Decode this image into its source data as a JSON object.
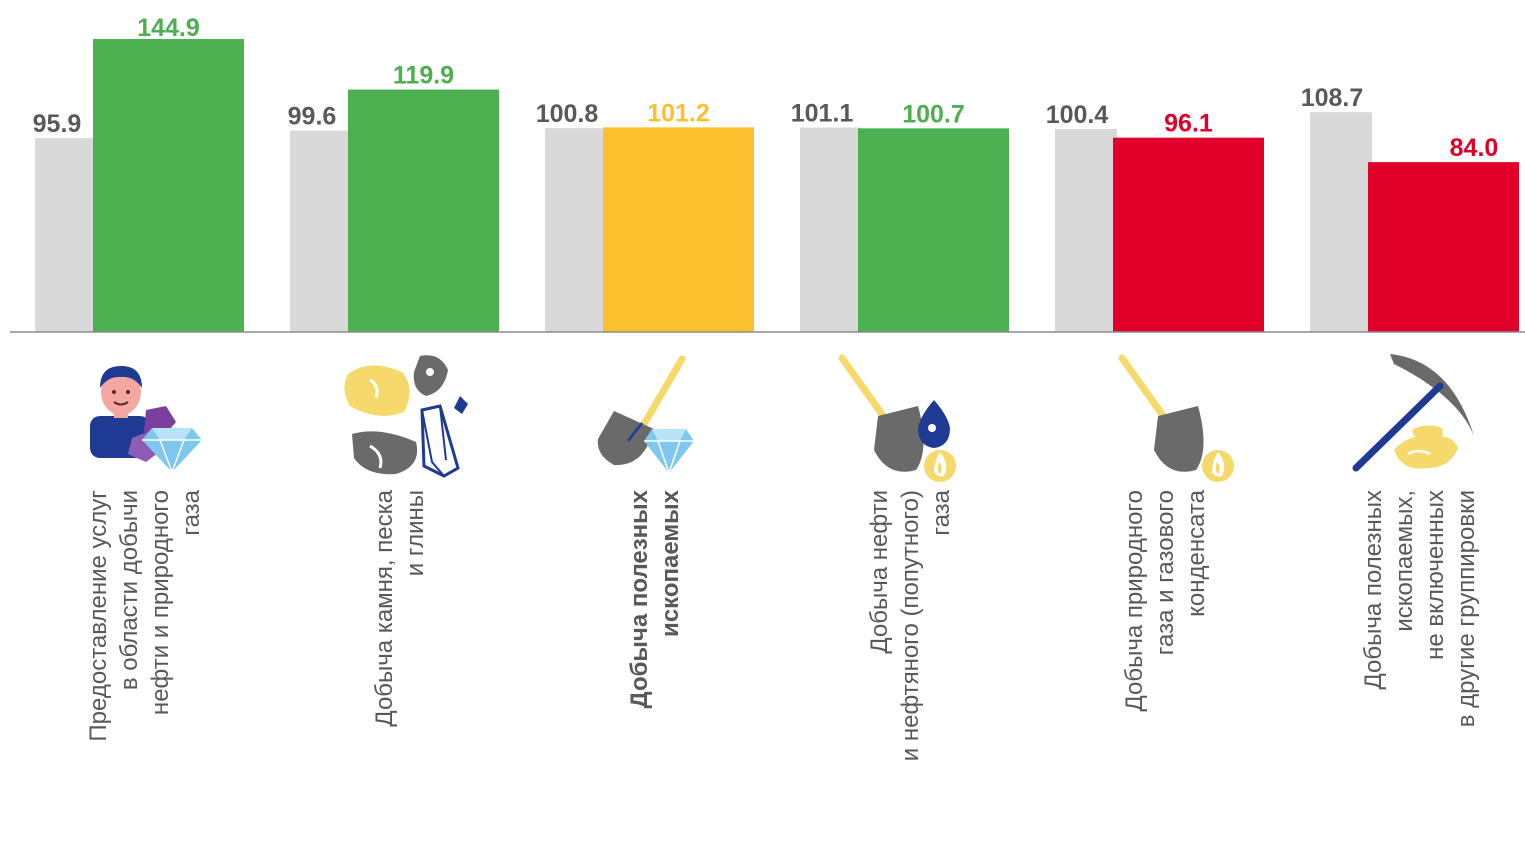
{
  "chart_data": {
    "type": "bar",
    "categories": [
      [
        "Предоставление услуг",
        "в области добычи",
        "нефти и природного",
        "газа"
      ],
      [
        "Добыча камня, песка",
        "и глины"
      ],
      [
        "Добыча полезных",
        "ископаемых"
      ],
      [
        "Добыча нефти",
        "и нефтяного (попутного)",
        "газа"
      ],
      [
        "Добыча  природного",
        "газа и газового",
        "конденсата"
      ],
      [
        "Добыча полезных",
        "ископаемых,",
        "не включенных",
        "в другие группировки"
      ]
    ],
    "series": [
      {
        "values": [
          95.9,
          99.6,
          100.8,
          101.1,
          100.4,
          108.7
        ],
        "color": "#d9d9d9",
        "label_color": "#595959"
      },
      {
        "values": [
          144.9,
          119.9,
          101.2,
          100.7,
          96.1,
          84.0
        ],
        "colors": [
          "#4caf50",
          "#4caf50",
          "#fbc02d",
          "#4caf50",
          "#e0002a",
          "#e0002a"
        ]
      }
    ],
    "value_labels": [
      [
        "95.9",
        "99.6",
        "100.8",
        "101.1",
        "100.4",
        "108.7"
      ],
      [
        "144.9",
        "119.9",
        "101.2",
        "100.7",
        "96.1",
        "84.0"
      ]
    ],
    "bold_category_index": 2,
    "icons": [
      "worker-with-gems-icon",
      "stones-and-crystal-icon",
      "shovel-with-diamond-icon",
      "shovel-oil-drop-flame-icon",
      "shovel-flame-icon",
      "pickaxe-with-gold-icon"
    ],
    "grid": false,
    "legend": "none"
  }
}
